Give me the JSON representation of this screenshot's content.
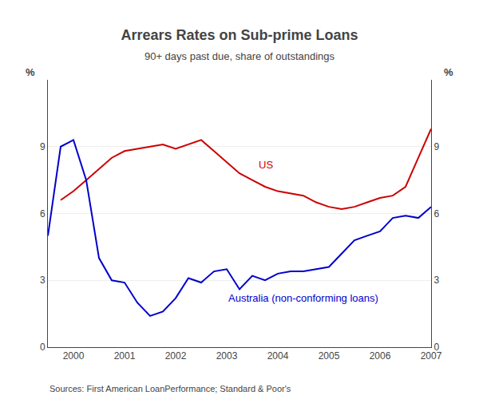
{
  "chart_data": {
    "type": "line",
    "title": "Arrears Rates on Sub-prime Loans",
    "subtitle": "90+ days past due, share of outstandings",
    "source": "Sources: First American LoanPerformance; Standard & Poor's",
    "ylabel": "%",
    "y2label": "%",
    "series": [
      {
        "name": "US",
        "color": "#cc0000",
        "x": [
          1999.75,
          2000.0,
          2000.25,
          2000.5,
          2000.75,
          2001.0,
          2001.25,
          2001.5,
          2001.75,
          2002.0,
          2002.25,
          2002.5,
          2002.75,
          2003.0,
          2003.25,
          2003.5,
          2003.75,
          2004.0,
          2004.25,
          2004.5,
          2004.75,
          2005.0,
          2005.25,
          2005.5,
          2005.75,
          2006.0,
          2006.25,
          2006.5,
          2006.75,
          2007.0
        ],
        "values": [
          6.6,
          7.0,
          7.5,
          8.0,
          8.5,
          8.8,
          8.9,
          9.0,
          9.1,
          8.9,
          9.1,
          9.3,
          8.8,
          8.3,
          7.8,
          7.5,
          7.2,
          7.0,
          6.9,
          6.8,
          6.5,
          6.3,
          6.2,
          6.3,
          6.5,
          6.7,
          6.8,
          7.2,
          8.5,
          9.8
        ]
      },
      {
        "name": "Australia (non-conforming loans)",
        "color": "#0000cc",
        "x": [
          1999.5,
          1999.75,
          2000.0,
          2000.25,
          2000.5,
          2000.75,
          2001.0,
          2001.25,
          2001.5,
          2001.75,
          2002.0,
          2002.25,
          2002.5,
          2002.75,
          2003.0,
          2003.25,
          2003.5,
          2003.75,
          2004.0,
          2004.25,
          2004.5,
          2004.75,
          2005.0,
          2005.25,
          2005.5,
          2005.75,
          2006.0,
          2006.25,
          2006.5,
          2006.75,
          2007.0
        ],
        "values": [
          5.0,
          9.0,
          9.3,
          7.5,
          4.0,
          3.0,
          2.9,
          2.0,
          1.4,
          1.6,
          2.2,
          3.1,
          2.9,
          3.4,
          3.5,
          2.6,
          3.2,
          3.0,
          3.3,
          3.4,
          3.4,
          3.5,
          3.6,
          4.2,
          4.8,
          5.0,
          5.2,
          5.8,
          5.9,
          5.8,
          6.3
        ]
      }
    ],
    "annotations": [
      {
        "text": "US",
        "x": 2003.6,
        "y": 7.85,
        "color": "#cc0000"
      },
      {
        "text": "Australia (non-conforming loans)",
        "x": 2003.0,
        "y": 1.85,
        "color": "#0000cc"
      }
    ],
    "xlim": [
      1999.5,
      2007.0
    ],
    "xticks": [
      2000,
      2001,
      2002,
      2003,
      2004,
      2005,
      2006,
      2007
    ],
    "ylim": [
      0,
      12
    ],
    "yticks": [
      0,
      3,
      6,
      9
    ],
    "y2lim": [
      0,
      12
    ],
    "y2ticks": [
      0,
      3,
      6,
      9
    ],
    "grid": true
  }
}
